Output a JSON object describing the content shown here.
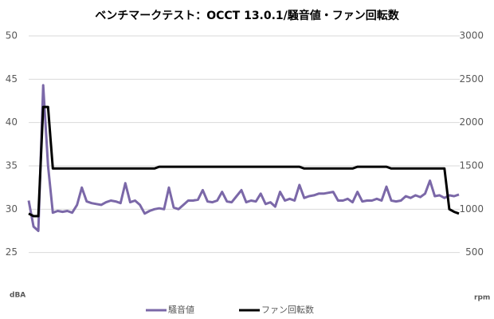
{
  "chart_data": {
    "type": "line",
    "title": "ベンチマークテスト：OCCT 13.0.1/騒音値・ファン回転数",
    "ylabel": "dBA",
    "y2label": "rpm",
    "ylim": [
      20,
      50
    ],
    "yticks": [
      25,
      30,
      35,
      40,
      45,
      50
    ],
    "y2lim": [
      0,
      3000
    ],
    "y2ticks": [
      500,
      1000,
      1500,
      2000,
      2500,
      3000
    ],
    "grid": true,
    "legend": "bottom",
    "series": [
      {
        "name": "騒音値",
        "color": "#7b68a8",
        "values": [
          31,
          28,
          27.5,
          44.3,
          35,
          29.6,
          29.8,
          29.7,
          29.8,
          29.6,
          30.5,
          32.5,
          30.9,
          30.7,
          30.6,
          30.5,
          30.8,
          31,
          30.9,
          30.7,
          33,
          30.8,
          31,
          30.5,
          29.5,
          29.8,
          30,
          30.1,
          30,
          32.5,
          30.2,
          30,
          30.5,
          31,
          31,
          31.1,
          32.2,
          30.9,
          30.8,
          31,
          32,
          30.9,
          30.8,
          31.5,
          32.2,
          30.8,
          31,
          30.9,
          31.8,
          30.6,
          30.8,
          30.3,
          32,
          31,
          31.2,
          31,
          32.8,
          31.3,
          31.5,
          31.6,
          31.8,
          31.8,
          31.9,
          32,
          31,
          31,
          31.2,
          30.8,
          32,
          30.9,
          31,
          31,
          31.2,
          31,
          32.6,
          31,
          30.9,
          31,
          31.5,
          31.3,
          31.6,
          31.4,
          31.8,
          33.3,
          31.5,
          31.6,
          31.3,
          31.6,
          31.5,
          31.7
        ]
      },
      {
        "name": "ファン回転数",
        "color": "#000000",
        "axis": "y2",
        "values": [
          950,
          920,
          920,
          2180,
          2180,
          1470,
          1470,
          1470,
          1470,
          1470,
          1470,
          1470,
          1470,
          1470,
          1470,
          1470,
          1470,
          1470,
          1470,
          1470,
          1470,
          1470,
          1470,
          1470,
          1470,
          1470,
          1470,
          1490,
          1490,
          1490,
          1490,
          1490,
          1490,
          1490,
          1490,
          1490,
          1490,
          1490,
          1490,
          1490,
          1490,
          1490,
          1490,
          1490,
          1490,
          1490,
          1490,
          1490,
          1490,
          1490,
          1490,
          1490,
          1490,
          1490,
          1490,
          1490,
          1490,
          1470,
          1470,
          1470,
          1470,
          1470,
          1470,
          1470,
          1470,
          1470,
          1470,
          1470,
          1490,
          1490,
          1490,
          1490,
          1490,
          1490,
          1490,
          1470,
          1470,
          1470,
          1470,
          1470,
          1470,
          1470,
          1470,
          1470,
          1470,
          1470,
          1470,
          1000,
          970,
          950
        ]
      }
    ]
  }
}
